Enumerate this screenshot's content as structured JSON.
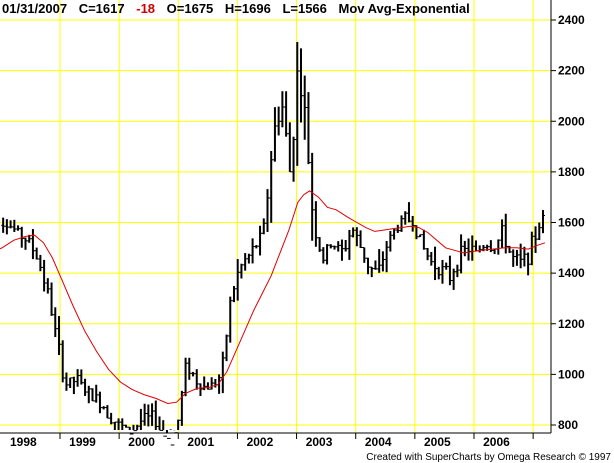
{
  "header": {
    "date": "01/31/2007",
    "close_label": "C=1617",
    "change": "-18",
    "open_label": "O=1675",
    "high_label": "H=1696",
    "low_label": "L=1566",
    "indicator": "Mov Avg-Exponential"
  },
  "credit": "Created with SuperCharts by Omega Research © 1997",
  "colors": {
    "background": "#ffffff",
    "grid": "#ffff00",
    "bars": "#000000",
    "moving_average": "#e00000",
    "change_negative": "#cc0000"
  },
  "chart_data": {
    "type": "ohlc",
    "title": "",
    "xlabel": "",
    "ylabel": "",
    "grid": true,
    "y_axis_side": "right",
    "ylim": [
      650,
      2480
    ],
    "yticks": [
      800,
      1000,
      1200,
      1400,
      1600,
      1800,
      2000,
      2200,
      2400
    ],
    "xlim": [
      1997.7,
      2007.15
    ],
    "xticks": [
      {
        "label": "1998",
        "x": 1998.0
      },
      {
        "label": "1999",
        "x": 1999.0
      },
      {
        "label": "2000",
        "x": 2000.0
      },
      {
        "label": "2001",
        "x": 2001.0
      },
      {
        "label": "2002",
        "x": 2002.0
      },
      {
        "label": "2003",
        "x": 2003.0
      },
      {
        "label": "2004",
        "x": 2004.0
      },
      {
        "label": "2005",
        "x": 2005.0
      },
      {
        "label": "2006",
        "x": 2006.0
      }
    ],
    "price_path": [
      [
        1997.7,
        1640
      ],
      [
        1997.85,
        1620
      ],
      [
        1998.0,
        1600
      ],
      [
        1998.2,
        1560
      ],
      [
        1998.4,
        1520
      ],
      [
        1998.55,
        1450
      ],
      [
        1998.7,
        1330
      ],
      [
        1998.85,
        1150
      ],
      [
        1999.0,
        960
      ],
      [
        1999.2,
        980
      ],
      [
        1999.4,
        920
      ],
      [
        1999.6,
        890
      ],
      [
        1999.75,
        840
      ],
      [
        1999.9,
        800
      ],
      [
        2000.1,
        770
      ],
      [
        2000.3,
        820
      ],
      [
        2000.5,
        830
      ],
      [
        2000.65,
        760
      ],
      [
        2000.8,
        740
      ],
      [
        2000.9,
        800
      ],
      [
        2001.05,
        1050
      ],
      [
        2001.2,
        980
      ],
      [
        2001.35,
        950
      ],
      [
        2001.5,
        960
      ],
      [
        2001.65,
        1000
      ],
      [
        2001.8,
        1300
      ],
      [
        2001.95,
        1420
      ],
      [
        2002.15,
        1480
      ],
      [
        2002.35,
        1560
      ],
      [
        2002.5,
        1900
      ],
      [
        2002.65,
        2100
      ],
      [
        2002.8,
        1800
      ],
      [
        2002.95,
        2250
      ],
      [
        2003.1,
        1900
      ],
      [
        2003.2,
        1600
      ],
      [
        2003.35,
        1450
      ],
      [
        2003.5,
        1520
      ],
      [
        2003.7,
        1480
      ],
      [
        2003.85,
        1580
      ],
      [
        2004.0,
        1500
      ],
      [
        2004.15,
        1420
      ],
      [
        2004.3,
        1400
      ],
      [
        2004.45,
        1520
      ],
      [
        2004.6,
        1580
      ],
      [
        2004.75,
        1620
      ],
      [
        2004.9,
        1600
      ],
      [
        2005.05,
        1500
      ],
      [
        2005.2,
        1440
      ],
      [
        2005.35,
        1420
      ],
      [
        2005.5,
        1380
      ],
      [
        2005.65,
        1460
      ],
      [
        2005.8,
        1500
      ],
      [
        2005.95,
        1480
      ],
      [
        2006.1,
        1520
      ],
      [
        2006.25,
        1500
      ],
      [
        2006.4,
        1560
      ],
      [
        2006.55,
        1460
      ],
      [
        2006.7,
        1440
      ],
      [
        2006.85,
        1480
      ],
      [
        2007.0,
        1580
      ],
      [
        2007.08,
        1617
      ]
    ],
    "moving_average": [
      [
        1997.7,
        1480
      ],
      [
        1997.9,
        1500
      ],
      [
        1998.1,
        1530
      ],
      [
        1998.3,
        1545
      ],
      [
        1998.45,
        1550
      ],
      [
        1998.6,
        1520
      ],
      [
        1998.75,
        1460
      ],
      [
        1998.9,
        1380
      ],
      [
        1999.1,
        1270
      ],
      [
        1999.3,
        1170
      ],
      [
        1999.5,
        1090
      ],
      [
        1999.7,
        1020
      ],
      [
        1999.9,
        970
      ],
      [
        2000.1,
        940
      ],
      [
        2000.3,
        920
      ],
      [
        2000.5,
        905
      ],
      [
        2000.7,
        885
      ],
      [
        2000.85,
        890
      ],
      [
        2001.0,
        925
      ],
      [
        2001.2,
        945
      ],
      [
        2001.4,
        948
      ],
      [
        2001.55,
        960
      ],
      [
        2001.7,
        1010
      ],
      [
        2001.85,
        1090
      ],
      [
        2002.0,
        1170
      ],
      [
        2002.15,
        1250
      ],
      [
        2002.3,
        1320
      ],
      [
        2002.45,
        1390
      ],
      [
        2002.6,
        1480
      ],
      [
        2002.75,
        1570
      ],
      [
        2002.9,
        1680
      ],
      [
        2003.0,
        1710
      ],
      [
        2003.1,
        1725
      ],
      [
        2003.25,
        1700
      ],
      [
        2003.4,
        1660
      ],
      [
        2003.55,
        1650
      ],
      [
        2003.75,
        1620
      ],
      [
        2003.9,
        1600
      ],
      [
        2004.05,
        1580
      ],
      [
        2004.2,
        1565
      ],
      [
        2004.35,
        1570
      ],
      [
        2004.5,
        1575
      ],
      [
        2004.65,
        1580
      ],
      [
        2004.8,
        1585
      ],
      [
        2004.95,
        1580
      ],
      [
        2005.1,
        1560
      ],
      [
        2005.25,
        1530
      ],
      [
        2005.4,
        1500
      ],
      [
        2005.55,
        1490
      ],
      [
        2005.7,
        1480
      ],
      [
        2005.85,
        1485
      ],
      [
        2006.0,
        1490
      ],
      [
        2006.2,
        1495
      ],
      [
        2006.4,
        1500
      ],
      [
        2006.6,
        1500
      ],
      [
        2006.8,
        1495
      ],
      [
        2006.95,
        1510
      ],
      [
        2007.08,
        1520
      ]
    ]
  }
}
